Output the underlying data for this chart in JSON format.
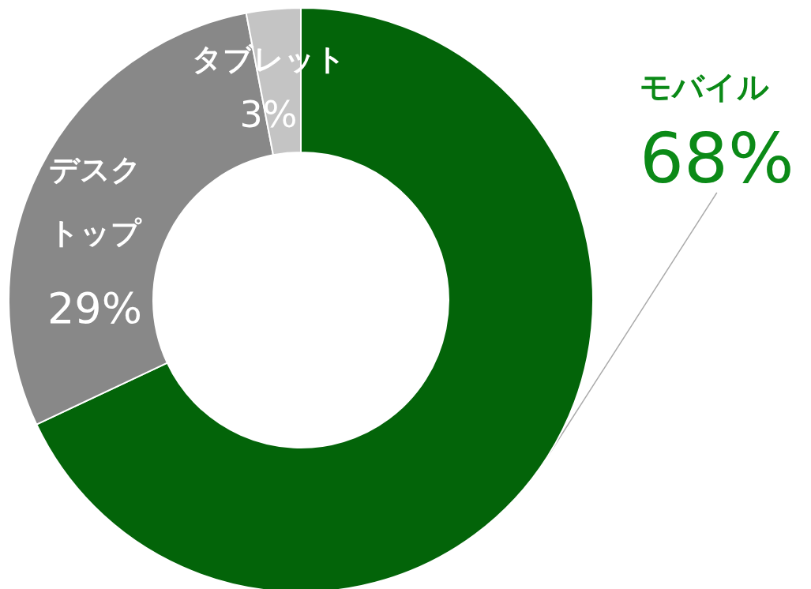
{
  "chart_data": {
    "type": "donut",
    "categories": [
      "モバイル",
      "デスクトップ",
      "タブレット"
    ],
    "values": [
      68,
      29,
      3
    ],
    "value_labels": [
      "68%",
      "29%",
      "3%"
    ],
    "colors": [
      "#036409",
      "#888888",
      "#c4c4c4"
    ],
    "legend": false
  }
}
